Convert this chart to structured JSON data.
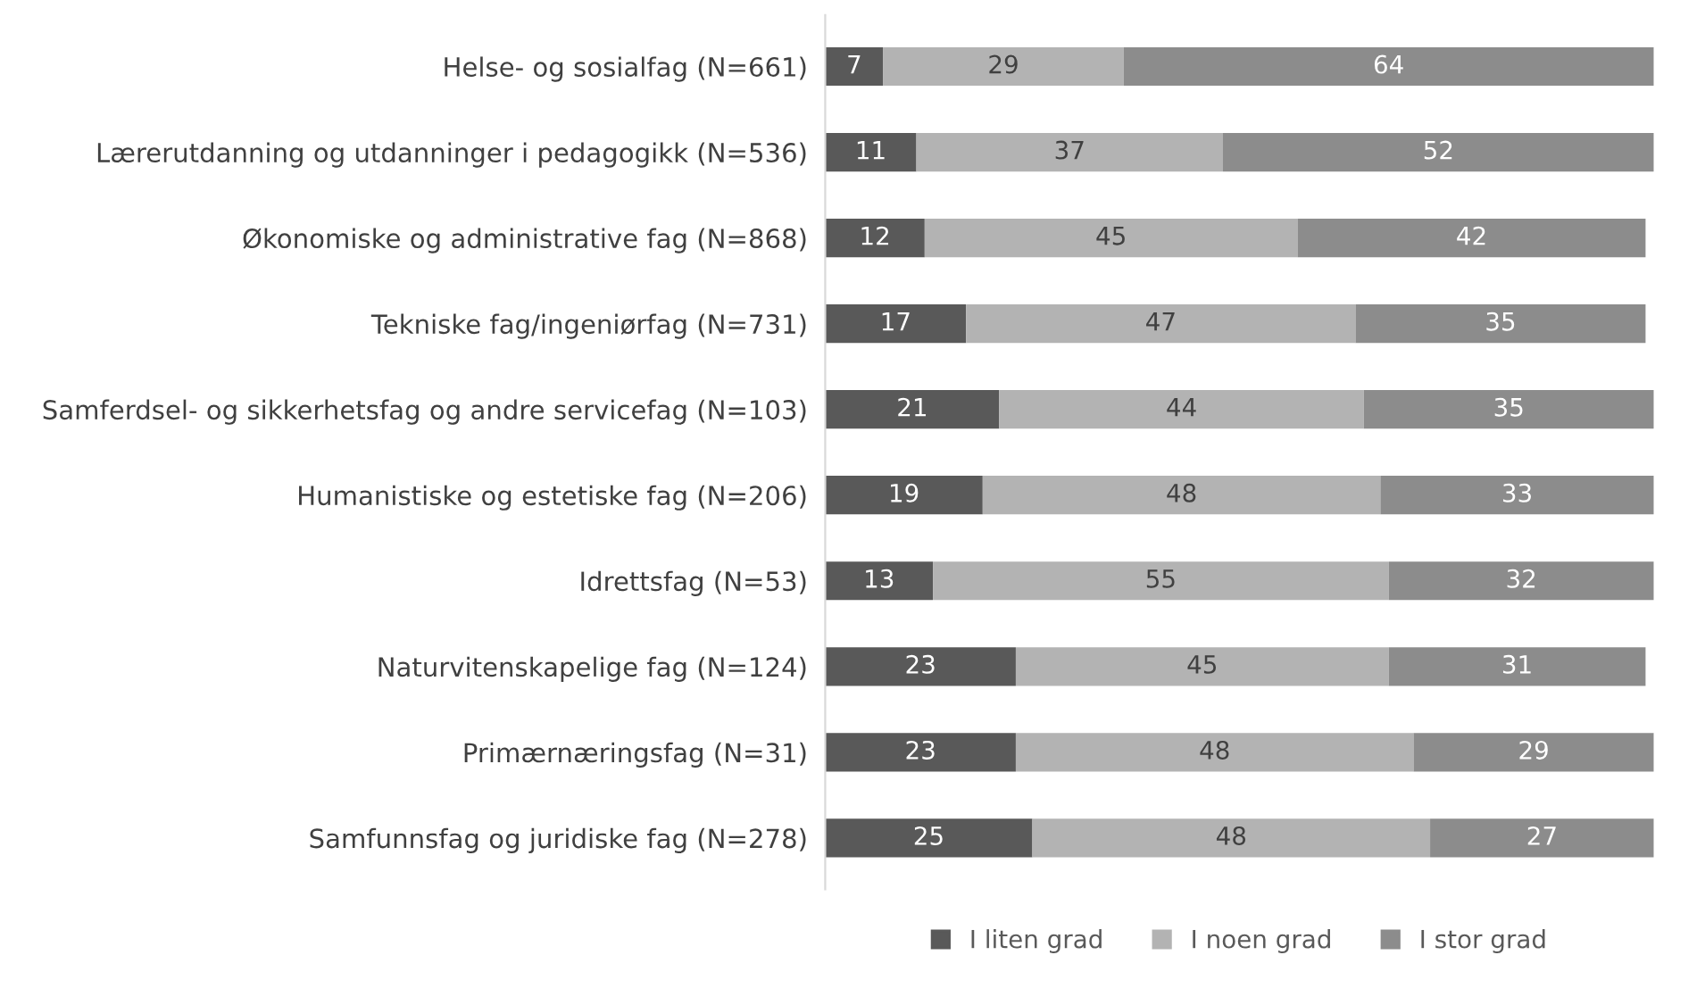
{
  "chart_data": {
    "type": "bar",
    "orientation": "horizontal",
    "stacked": true,
    "data_labels": true,
    "legend": "bottom",
    "tick_labels": "y",
    "grid": false,
    "xlim": [
      0,
      100
    ],
    "categories": [
      "Helse- og sosialfag (N=661)",
      "Lærerutdanning og utdanninger i pedagogikk (N=536)",
      "Økonomiske og administrative fag (N=868)",
      "Tekniske fag/ingeniørfag (N=731)",
      "Samferdsel- og sikkerhetsfag og andre servicefag (N=103)",
      "Humanistiske og estetiske fag (N=206)",
      "Idrettsfag (N=53)",
      "Naturvitenskapelige fag (N=124)",
      "Primærnæringsfag (N=31)",
      "Samfunnsfag og juridiske fag (N=278)"
    ],
    "series": [
      {
        "name": "I liten grad",
        "color": "#595959",
        "values": [
          7,
          11,
          12,
          17,
          21,
          19,
          13,
          23,
          23,
          25
        ]
      },
      {
        "name": "I noen grad",
        "color": "#b3b3b3",
        "values": [
          29,
          37,
          45,
          47,
          44,
          48,
          55,
          45,
          48,
          48
        ]
      },
      {
        "name": "I stor grad",
        "color": "#8c8c8c",
        "values": [
          64,
          52,
          42,
          35,
          35,
          33,
          32,
          31,
          29,
          27
        ]
      }
    ]
  }
}
